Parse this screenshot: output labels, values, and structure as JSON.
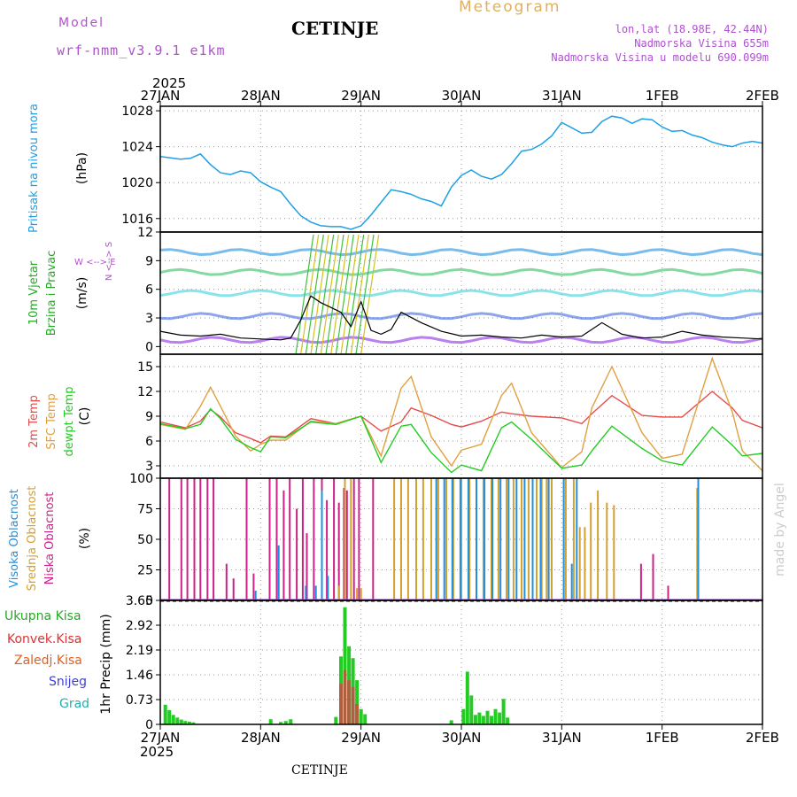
{
  "header": {
    "model_label": "Model",
    "model_name": "wrf-nmm_v3.9.1 e1km",
    "city": "CETINJE",
    "meteogram": "Meteogram",
    "lonlat": "lon,lat (18.98E, 42.44N)",
    "elevation": "Nadmorska Visina 655m",
    "model_elevation": "Nadmorska Visina u modelu 690.099m",
    "footer_city": "CETINJE",
    "credit": "made by Angel",
    "year_top": "2025",
    "year_bottom": "2025"
  },
  "colors": {
    "pressure": "#1ea0e6",
    "wind_text": "#22aa22",
    "temp2m": "#e84a4a",
    "sfc": "#e0a040",
    "dew": "#22cc22",
    "low_cloud": "#cc2288",
    "mid_cloud": "#d4a030",
    "high_cloud": "#1e90e0",
    "model_text": "#b050d0",
    "credit": "#cccccc"
  },
  "chart_data": [
    {
      "type": "line",
      "name": "pressure",
      "label_left": "Pritisak na nivou mora",
      "unit": "(hPa)",
      "x_ticks": [
        "27JAN",
        "28JAN",
        "29JAN",
        "30JAN",
        "31JAN",
        "1FEB",
        "2FEB"
      ],
      "ylim": [
        1014.5,
        1028.5
      ],
      "yticks": [
        "1016",
        "1020",
        "1024",
        "1028"
      ],
      "x": [
        0,
        0.2,
        0.3,
        0.4,
        0.5,
        0.6,
        0.7,
        0.8,
        0.9,
        1,
        1.1,
        1.2,
        1.3,
        1.4,
        1.5,
        1.6,
        1.7,
        1.8,
        1.9,
        2,
        2.1,
        2.2,
        2.3,
        2.4,
        2.5,
        2.6,
        2.7,
        2.8,
        2.9,
        3,
        3.1,
        3.2,
        3.3,
        3.4,
        3.5,
        3.6,
        3.7,
        3.8,
        3.9,
        4,
        4.1,
        4.2,
        4.3,
        4.4,
        4.5,
        4.6,
        4.7,
        4.8,
        4.9,
        5,
        5.1,
        5.2,
        5.3,
        5.4,
        5.5,
        5.6,
        5.7,
        5.8,
        5.9,
        6
      ],
      "values": [
        1022.9,
        1022.6,
        1022.7,
        1023.2,
        1022.0,
        1021.1,
        1020.9,
        1021.3,
        1021.1,
        1020.1,
        1019.5,
        1019.0,
        1017.6,
        1016.3,
        1015.6,
        1015.2,
        1015.1,
        1015.1,
        1014.8,
        1015.2,
        1016.4,
        1017.8,
        1019.2,
        1019.0,
        1018.7,
        1018.2,
        1017.9,
        1017.4,
        1019.5,
        1020.8,
        1021.4,
        1020.7,
        1020.4,
        1020.9,
        1022.1,
        1023.5,
        1023.7,
        1024.3,
        1025.2,
        1026.7,
        1026.1,
        1025.5,
        1025.6,
        1026.8,
        1027.4,
        1027.2,
        1026.6,
        1027.1,
        1027.0,
        1026.2,
        1025.7,
        1025.8,
        1025.3,
        1025.0,
        1024.5,
        1024.2,
        1024.0,
        1024.4,
        1024.6,
        1024.4
      ]
    },
    {
      "type": "line",
      "name": "wind",
      "label_left_1": "10m Vjetar",
      "label_left_2": "Brzina i Pravac",
      "unit": "(m/s)",
      "compass": [
        "N",
        "S",
        "W",
        "E"
      ],
      "ylim": [
        -0.8,
        12
      ],
      "yticks": [
        "0",
        "3",
        "6",
        "9",
        "12"
      ],
      "x": [
        0,
        0.2,
        0.4,
        0.6,
        0.8,
        1,
        1.2,
        1.3,
        1.4,
        1.5,
        1.6,
        1.7,
        1.8,
        1.9,
        2,
        2.1,
        2.2,
        2.3,
        2.4,
        2.6,
        2.8,
        3,
        3.2,
        3.4,
        3.6,
        3.8,
        4,
        4.2,
        4.4,
        4.6,
        4.8,
        5,
        5.2,
        5.4,
        5.6,
        5.8,
        6
      ],
      "values": [
        1.6,
        1.2,
        1.1,
        1.3,
        0.9,
        0.8,
        0.7,
        0.9,
        2.8,
        5.3,
        4.6,
        4.1,
        3.6,
        2.1,
        4.7,
        1.7,
        1.3,
        1.8,
        3.6,
        2.5,
        1.6,
        1.1,
        1.2,
        1.0,
        0.9,
        1.2,
        1.0,
        1.1,
        2.5,
        1.3,
        0.9,
        1.0,
        1.6,
        1.2,
        1.0,
        0.9,
        0.8
      ]
    },
    {
      "type": "line",
      "name": "temperature",
      "label_left_1": "2m Temp",
      "label_left_2": "SFC Temp",
      "label_left_3": "dewpt Temp",
      "unit": "(C)",
      "ylim": [
        1.5,
        16.5
      ],
      "yticks": [
        "3",
        "6",
        "9",
        "12",
        "15"
      ],
      "x": [
        0,
        0.25,
        0.4,
        0.5,
        0.6,
        0.75,
        0.9,
        1,
        1.1,
        1.25,
        1.5,
        1.75,
        2,
        2.2,
        2.4,
        2.5,
        2.7,
        2.9,
        3,
        3.2,
        3.4,
        3.5,
        3.7,
        4,
        4.2,
        4.3,
        4.5,
        4.8,
        5,
        5.2,
        5.5,
        5.7,
        5.8,
        6
      ],
      "series": [
        {
          "name": "2m",
          "values": [
            8.3,
            7.6,
            8.4,
            9.8,
            8.9,
            7.0,
            6.3,
            5.8,
            6.6,
            6.5,
            8.7,
            8.1,
            9.0,
            7.2,
            8.3,
            10.0,
            9.1,
            8.0,
            7.7,
            8.4,
            9.5,
            9.3,
            9.0,
            8.8,
            8.1,
            9.3,
            11.5,
            9.1,
            8.9,
            8.9,
            12.0,
            10.0,
            8.5,
            7.6
          ]
        },
        {
          "name": "sfc",
          "values": [
            8.0,
            7.4,
            10.2,
            12.5,
            10.2,
            6.6,
            4.8,
            5.6,
            6.1,
            6.1,
            8.4,
            8.1,
            9.0,
            4.2,
            12.4,
            13.8,
            6.5,
            3.0,
            4.9,
            5.6,
            11.5,
            13.0,
            7.0,
            2.8,
            4.7,
            10.0,
            15.0,
            7.0,
            3.9,
            4.4,
            16.0,
            9.5,
            4.8,
            2.4
          ]
        },
        {
          "name": "dew",
          "values": [
            8.1,
            7.5,
            8.0,
            9.9,
            8.7,
            6.2,
            5.2,
            4.7,
            6.5,
            6.4,
            8.3,
            8.0,
            9.0,
            3.4,
            7.8,
            8.0,
            4.6,
            2.2,
            3.1,
            2.4,
            7.6,
            8.3,
            6.2,
            2.7,
            3.1,
            4.8,
            7.8,
            5.1,
            3.6,
            3.1,
            7.7,
            5.5,
            4.2,
            4.5
          ]
        }
      ]
    },
    {
      "type": "bar",
      "name": "cloud",
      "label_left_1": "Visoka Oblacnost",
      "label_left_2": "Srednja Oblacnost",
      "label_left_3": "Niska Oblacnost",
      "unit": "(%)",
      "ylim": [
        0,
        100
      ],
      "yticks": [
        "0",
        "25",
        "50",
        "75",
        "100"
      ],
      "series": [
        {
          "name": "low",
          "x": [
            0.09,
            0.21,
            0.27,
            0.34,
            0.4,
            0.47,
            0.53,
            0.66,
            0.73,
            0.86,
            0.93,
            1.09,
            1.16,
            1.23,
            1.29,
            1.36,
            1.42,
            1.46,
            1.53,
            1.61,
            1.66,
            1.73,
            1.78,
            1.83,
            1.86,
            1.93,
            1.98,
            2.12,
            4.79,
            4.91,
            5.06
          ],
          "values": [
            100,
            100,
            100,
            100,
            100,
            100,
            100,
            30,
            18,
            100,
            22,
            100,
            100,
            90,
            100,
            75,
            100,
            55,
            100,
            100,
            82,
            100,
            80,
            92,
            90,
            100,
            100,
            100,
            30,
            38,
            12
          ]
        },
        {
          "name": "mid",
          "x": [
            1.78,
            1.84,
            1.9,
            1.96,
            2.0,
            2.33,
            2.4,
            2.47,
            2.55,
            2.62,
            2.7,
            2.77,
            2.85,
            2.92,
            3.0,
            3.08,
            3.15,
            3.22,
            3.3,
            3.37,
            3.45,
            3.52,
            3.6,
            3.67,
            3.75,
            3.8,
            3.85,
            3.9,
            4.04,
            4.12,
            4.18,
            4.23,
            4.29,
            4.36,
            4.45,
            4.52,
            5.35
          ],
          "values": [
            12,
            100,
            100,
            10,
            10,
            100,
            100,
            100,
            100,
            100,
            100,
            100,
            100,
            100,
            100,
            100,
            100,
            100,
            100,
            100,
            100,
            100,
            100,
            100,
            100,
            100,
            100,
            100,
            100,
            100,
            60,
            60,
            80,
            90,
            80,
            78,
            92
          ]
        },
        {
          "name": "high",
          "x": [
            0.95,
            1.18,
            1.45,
            1.55,
            1.61,
            1.67,
            2.75,
            2.83,
            2.91,
            2.99,
            3.07,
            3.15,
            3.23,
            3.31,
            3.39,
            3.47,
            3.55,
            3.63,
            3.71,
            3.79,
            3.87,
            4.02,
            4.1,
            4.15,
            5.36
          ],
          "values": [
            8,
            45,
            12,
            12,
            90,
            20,
            100,
            100,
            100,
            100,
            100,
            100,
            100,
            100,
            100,
            100,
            100,
            100,
            100,
            100,
            100,
            100,
            30,
            100,
            100
          ]
        }
      ]
    },
    {
      "type": "bar",
      "name": "precip",
      "label_total": "Ukupna Kisa",
      "label_conv": "Konvek.Kisa",
      "label_frz": "Zaledj.Kisa",
      "label_snow": "Snijeg",
      "label_grad": "Grad",
      "ylabel": "1hr Precip (mm)",
      "ylim": [
        0,
        3.65
      ],
      "yticks": [
        "0",
        "0.73",
        "1.46",
        "2.19",
        "2.92",
        "3.65"
      ],
      "x_ticks": [
        "27JAN",
        "28JAN",
        "29JAN",
        "30JAN",
        "31JAN",
        "1FEB",
        "2FEB"
      ],
      "series": [
        {
          "name": "total",
          "x": [
            0.05,
            0.09,
            0.13,
            0.17,
            0.21,
            0.25,
            0.29,
            0.33,
            1.1,
            1.2,
            1.25,
            1.3,
            1.75,
            1.8,
            1.84,
            1.88,
            1.92,
            1.96,
            2.0,
            2.04,
            2.9,
            3.02,
            3.06,
            3.1,
            3.14,
            3.18,
            3.22,
            3.26,
            3.3,
            3.34,
            3.38,
            3.42,
            3.46
          ],
          "values": [
            0.58,
            0.42,
            0.28,
            0.2,
            0.14,
            0.1,
            0.08,
            0.06,
            0.15,
            0.07,
            0.1,
            0.15,
            0.22,
            2.0,
            3.45,
            2.3,
            1.95,
            1.3,
            0.45,
            0.3,
            0.12,
            0.45,
            1.55,
            0.85,
            0.28,
            0.35,
            0.25,
            0.4,
            0.25,
            0.45,
            0.35,
            0.75,
            0.2
          ]
        },
        {
          "name": "convective",
          "x": [
            1.8,
            1.84,
            1.88,
            1.92,
            1.96
          ],
          "values": [
            1.2,
            1.6,
            1.3,
            1.1,
            0.6
          ]
        }
      ]
    }
  ]
}
